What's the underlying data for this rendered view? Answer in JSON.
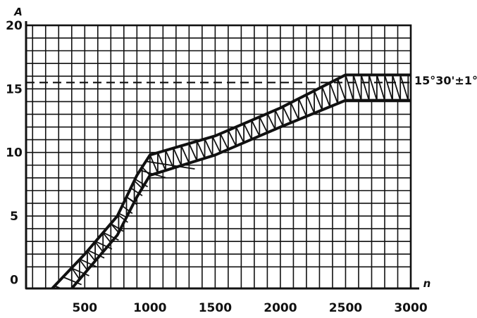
{
  "chart_data": {
    "type": "area",
    "title": "",
    "xlabel": "n",
    "ylabel": "A",
    "x_ticks": [
      500,
      1000,
      1500,
      2000,
      2500,
      3000
    ],
    "x_tick_labels": [
      "500",
      "1000",
      "1500",
      "2000",
      "2500",
      "3000"
    ],
    "y_ticks": [
      0,
      5,
      10,
      15,
      20
    ],
    "y_tick_labels": [
      "0",
      "5",
      "10",
      "15",
      "20"
    ],
    "xlim": [
      50,
      3000
    ],
    "ylim": [
      -0.7,
      20
    ],
    "grid": true,
    "series": [
      {
        "values": [
          {
            "x": 250,
            "y": -0.7
          },
          {
            "x": 500,
            "y": 2.0
          },
          {
            "x": 750,
            "y": 5.0
          },
          {
            "x": 900,
            "y": 8.2
          },
          {
            "x": 1000,
            "y": 9.8
          },
          {
            "x": 1500,
            "y": 11.3
          },
          {
            "x": 2000,
            "y": 13.5
          },
          {
            "x": 2500,
            "y": 16.1
          },
          {
            "x": 3000,
            "y": 16.1
          }
        ]
      },
      {
        "values": [
          {
            "x": 400,
            "y": -0.7
          },
          {
            "x": 500,
            "y": 0.5
          },
          {
            "x": 750,
            "y": 3.5
          },
          {
            "x": 900,
            "y": 6.5
          },
          {
            "x": 1000,
            "y": 8.2
          },
          {
            "x": 1500,
            "y": 9.8
          },
          {
            "x": 2000,
            "y": 12.0
          },
          {
            "x": 2500,
            "y": 14.1
          },
          {
            "x": 3000,
            "y": 14.1
          }
        ]
      }
    ],
    "reference_line": {
      "y": 15.5,
      "style": "dashed",
      "label": "15°30'±1°"
    },
    "band_fill": "hatched",
    "colors": {
      "ink": "#111111",
      "background": "#ffffff"
    }
  }
}
